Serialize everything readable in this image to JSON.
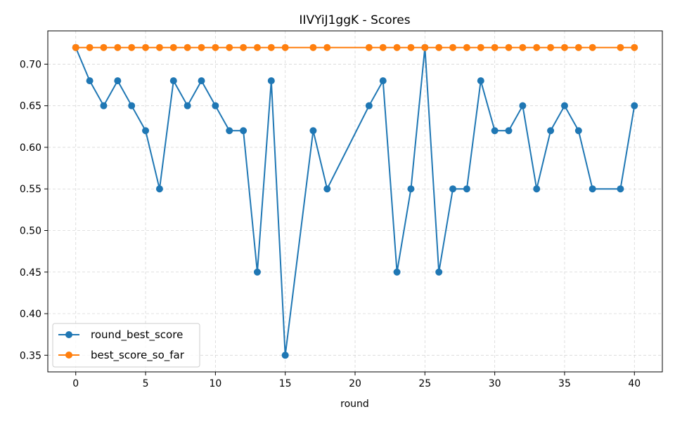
{
  "chart_data": {
    "type": "line",
    "title": "IIVYiJ1ggK - Scores",
    "xlabel": "round",
    "ylabel": "",
    "xlim": [
      -2,
      42
    ],
    "ylim": [
      0.33,
      0.74
    ],
    "x_ticks": [
      0,
      5,
      10,
      15,
      20,
      25,
      30,
      35,
      40
    ],
    "y_ticks": [
      0.35,
      0.4,
      0.45,
      0.5,
      0.55,
      0.6,
      0.65,
      0.7
    ],
    "x_tick_labels": [
      "0",
      "5",
      "10",
      "15",
      "20",
      "25",
      "30",
      "35",
      "40"
    ],
    "y_tick_labels": [
      "0.35",
      "0.40",
      "0.45",
      "0.50",
      "0.55",
      "0.60",
      "0.65",
      "0.70"
    ],
    "grid": true,
    "legend_position": "bottom-left",
    "series": [
      {
        "name": "round_best_score",
        "color": "#1f77b4",
        "x": [
          0,
          1,
          2,
          3,
          4,
          5,
          6,
          7,
          8,
          9,
          10,
          11,
          12,
          13,
          14,
          15,
          17,
          18,
          21,
          22,
          23,
          24,
          25,
          26,
          27,
          28,
          29,
          30,
          31,
          32,
          33,
          34,
          35,
          36,
          37,
          39,
          40
        ],
        "values": [
          0.72,
          0.68,
          0.65,
          0.68,
          0.65,
          0.62,
          0.55,
          0.68,
          0.65,
          0.68,
          0.65,
          0.62,
          0.62,
          0.45,
          0.68,
          0.35,
          0.62,
          0.55,
          0.65,
          0.68,
          0.45,
          0.55,
          0.72,
          0.45,
          0.55,
          0.55,
          0.68,
          0.62,
          0.62,
          0.65,
          0.55,
          0.62,
          0.65,
          0.62,
          0.55,
          0.55,
          0.65
        ]
      },
      {
        "name": "best_score_so_far",
        "color": "#ff7f0e",
        "x": [
          0,
          1,
          2,
          3,
          4,
          5,
          6,
          7,
          8,
          9,
          10,
          11,
          12,
          13,
          14,
          15,
          17,
          18,
          21,
          22,
          23,
          24,
          25,
          26,
          27,
          28,
          29,
          30,
          31,
          32,
          33,
          34,
          35,
          36,
          37,
          39,
          40
        ],
        "values": [
          0.72,
          0.72,
          0.72,
          0.72,
          0.72,
          0.72,
          0.72,
          0.72,
          0.72,
          0.72,
          0.72,
          0.72,
          0.72,
          0.72,
          0.72,
          0.72,
          0.72,
          0.72,
          0.72,
          0.72,
          0.72,
          0.72,
          0.72,
          0.72,
          0.72,
          0.72,
          0.72,
          0.72,
          0.72,
          0.72,
          0.72,
          0.72,
          0.72,
          0.72,
          0.72,
          0.72,
          0.72
        ]
      }
    ]
  }
}
